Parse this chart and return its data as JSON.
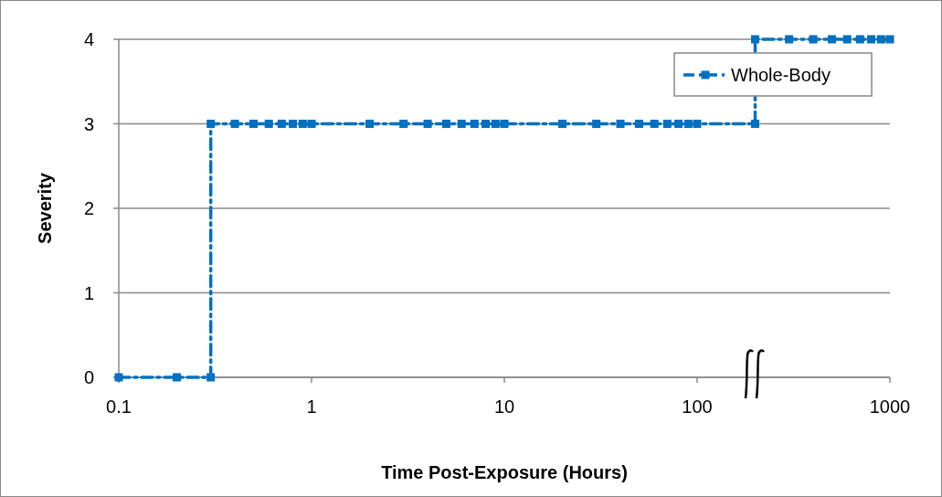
{
  "chart_data": {
    "type": "line",
    "xlabel": "Time Post-Exposure (Hours)",
    "ylabel": "Severity",
    "xlim": [
      0.1,
      1000
    ],
    "xticks": [
      0.1,
      1,
      10,
      100,
      1000
    ],
    "log": "x",
    "ylim": [
      0,
      4
    ],
    "yticks": [
      0,
      1,
      2,
      3,
      4
    ],
    "grid": "y",
    "legend": "top right",
    "marker": "square",
    "line_style": "dashed",
    "series": [
      {
        "name": "Whole-Body",
        "color": "#0070c0",
        "x": [
          0.1,
          0.2,
          0.3,
          0.3,
          0.4,
          0.5,
          0.6,
          0.7,
          0.8,
          0.9,
          1,
          2,
          3,
          4,
          5,
          6,
          7,
          8,
          9,
          10,
          20,
          30,
          40,
          50,
          60,
          70,
          80,
          90,
          100,
          200,
          200,
          300,
          400,
          500,
          600,
          700,
          800,
          900,
          1000
        ],
        "values": [
          0,
          0,
          0,
          3,
          3,
          3,
          3,
          3,
          3,
          3,
          3,
          3,
          3,
          3,
          3,
          3,
          3,
          3,
          3,
          3,
          3,
          3,
          3,
          3,
          3,
          3,
          3,
          3,
          3,
          3,
          4,
          4,
          4,
          4,
          4,
          4,
          4,
          4,
          4
        ]
      }
    ]
  }
}
